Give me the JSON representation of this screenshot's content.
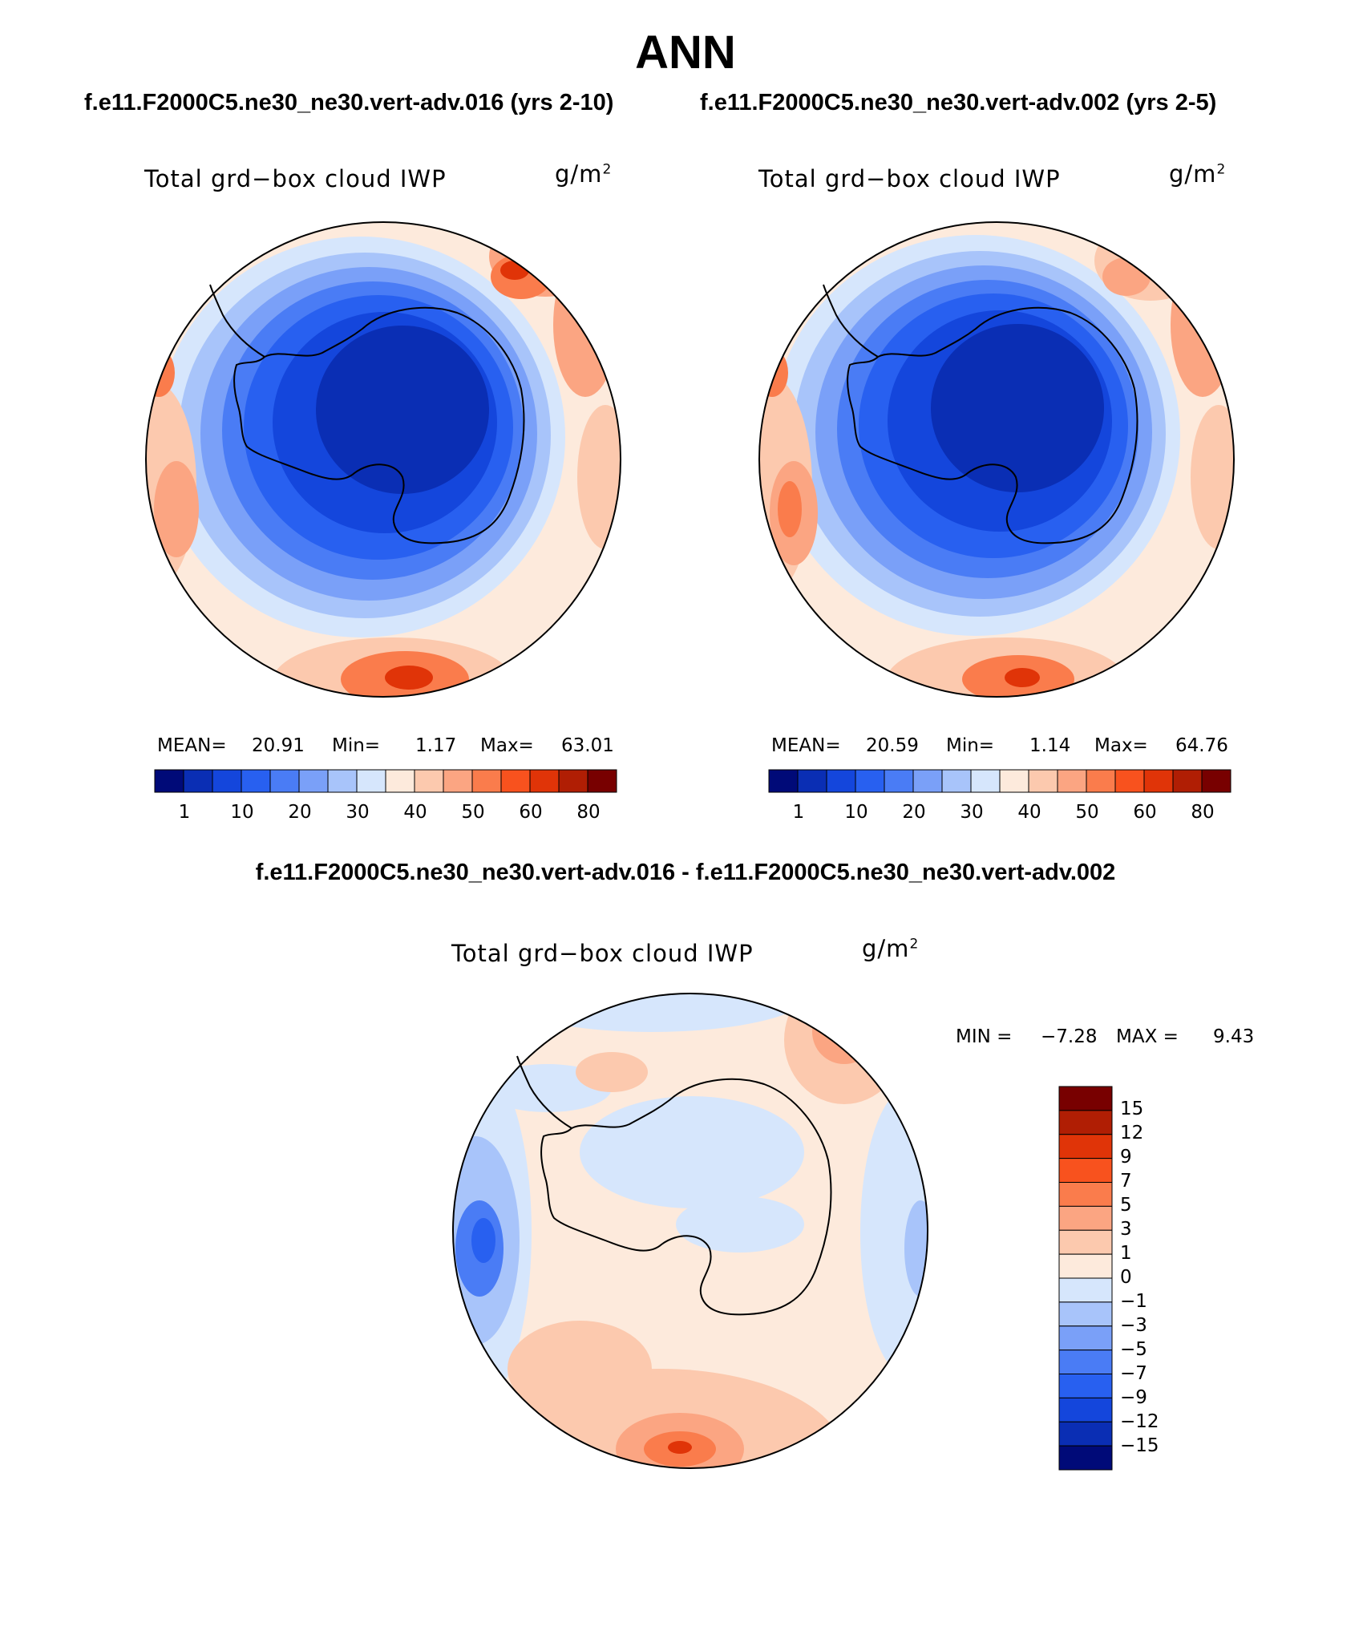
{
  "title": "ANN",
  "panel_left": {
    "case": "f.e11.F2000C5.ne30_ne30.vert-adv.016 (yrs 2-10)",
    "variable": "Total grd−box cloud IWP",
    "units_base": "g/m",
    "units_exp": "2",
    "stats": {
      "mean_label": "MEAN=",
      "mean": "20.91",
      "min_label": "Min=",
      "min": "1.17",
      "max_label": "Max=",
      "max": "63.01"
    }
  },
  "panel_right": {
    "case": "f.e11.F2000C5.ne30_ne30.vert-adv.002 (yrs 2-5)",
    "variable": "Total grd−box cloud IWP",
    "units_base": "g/m",
    "units_exp": "2",
    "stats": {
      "mean_label": "MEAN=",
      "mean": "20.59",
      "min_label": "Min=",
      "min": "1.14",
      "max_label": "Max=",
      "max": "64.76"
    }
  },
  "panel_diff": {
    "title": "f.e11.F2000C5.ne30_ne30.vert-adv.016 - f.e11.F2000C5.ne30_ne30.vert-adv.002",
    "variable": "Total grd−box cloud IWP",
    "units_base": "g/m",
    "units_exp": "2",
    "min_label": "MIN =",
    "min": "−7.28",
    "max_label": "MAX =",
    "max": "9.43"
  },
  "colorbar_abs": {
    "colors": [
      "#000a78",
      "#0a2eb4",
      "#1446dc",
      "#2860f0",
      "#4a7cf5",
      "#7aa0f8",
      "#a8c4fa",
      "#d6e6fc",
      "#fdeadc",
      "#fcc9ae",
      "#fba582",
      "#fa7c4c",
      "#f8521e",
      "#e03408",
      "#b01e04",
      "#780000"
    ],
    "ticks": [
      "1",
      "10",
      "20",
      "30",
      "40",
      "50",
      "60",
      "80"
    ]
  },
  "colorbar_diff": {
    "colors": [
      "#780000",
      "#b01e04",
      "#e03408",
      "#f8521e",
      "#fa7c4c",
      "#fba582",
      "#fcc9ae",
      "#fdeadc",
      "#d6e6fc",
      "#a8c4fa",
      "#7aa0f8",
      "#4a7cf5",
      "#2860f0",
      "#1446dc",
      "#0a2eb4",
      "#000a78"
    ],
    "labels": [
      "15",
      "12",
      "9",
      "7",
      "5",
      "3",
      "1",
      "0",
      "−1",
      "−3",
      "−5",
      "−7",
      "−9",
      "−12",
      "−15"
    ]
  }
}
